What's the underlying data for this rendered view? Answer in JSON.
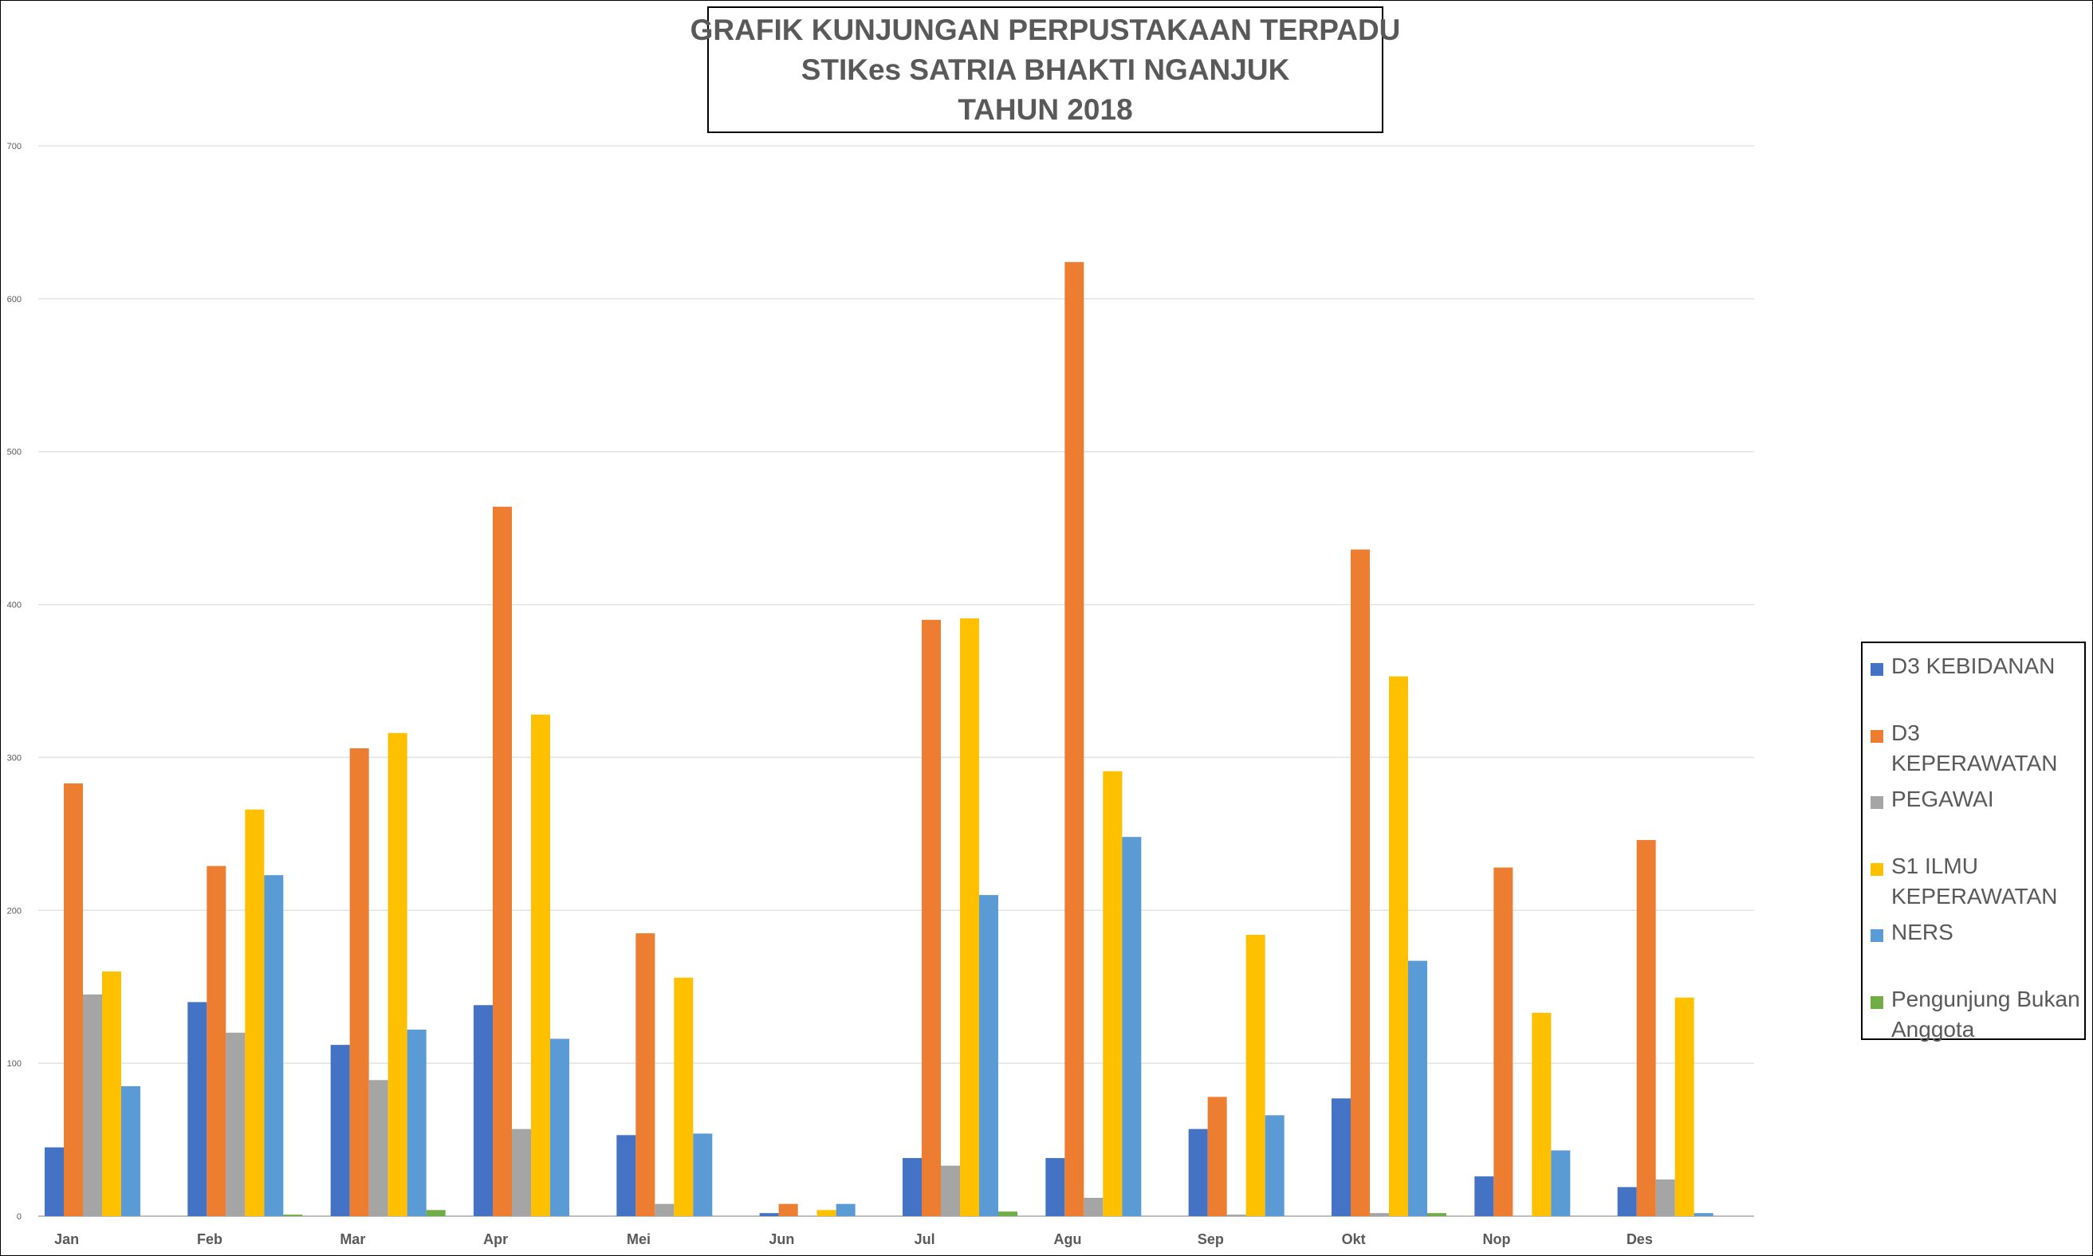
{
  "title": {
    "line1": "GRAFIK KUNJUNGAN PERPUSTAKAAN TERPADU",
    "line2": "STIKes SATRIA BHAKTI NGANJUK",
    "line3": "TAHUN 2018"
  },
  "chart_data": {
    "type": "bar",
    "categories": [
      "Jan",
      "Feb",
      "Mar",
      "Apr",
      "Mei",
      "Jun",
      "Jul",
      "Agu",
      "Sep",
      "Okt",
      "Nop",
      "Des"
    ],
    "series": [
      {
        "name": "D3 KEBIDANAN",
        "color": "#4472c4",
        "values": [
          45,
          140,
          112,
          138,
          53,
          2,
          38,
          38,
          57,
          77,
          26,
          19
        ]
      },
      {
        "name": "D3 KEPERAWATAN",
        "color": "#ed7d31",
        "values": [
          283,
          229,
          306,
          464,
          185,
          8,
          390,
          624,
          78,
          436,
          228,
          246
        ]
      },
      {
        "name": "PEGAWAI",
        "color": "#a5a5a5",
        "values": [
          145,
          120,
          89,
          57,
          8,
          0,
          33,
          12,
          1,
          2,
          0,
          24
        ]
      },
      {
        "name": "S1 ILMU KEPERAWATAN",
        "color": "#ffc000",
        "values": [
          160,
          266,
          316,
          328,
          156,
          4,
          391,
          291,
          184,
          353,
          133,
          143
        ]
      },
      {
        "name": "NERS",
        "color": "#5b9bd5",
        "values": [
          85,
          223,
          122,
          116,
          54,
          8,
          210,
          248,
          66,
          167,
          43,
          2
        ]
      },
      {
        "name": "Pengunjung Bukan Anggota",
        "color": "#70ad47",
        "values": [
          0,
          1,
          4,
          0,
          0,
          0,
          3,
          0,
          0,
          2,
          0,
          0
        ]
      }
    ],
    "y_ticks": [
      0,
      100,
      200,
      300,
      400,
      500,
      600,
      700
    ],
    "ylim": [
      0,
      700
    ],
    "grid": true,
    "legend_position": "right"
  }
}
